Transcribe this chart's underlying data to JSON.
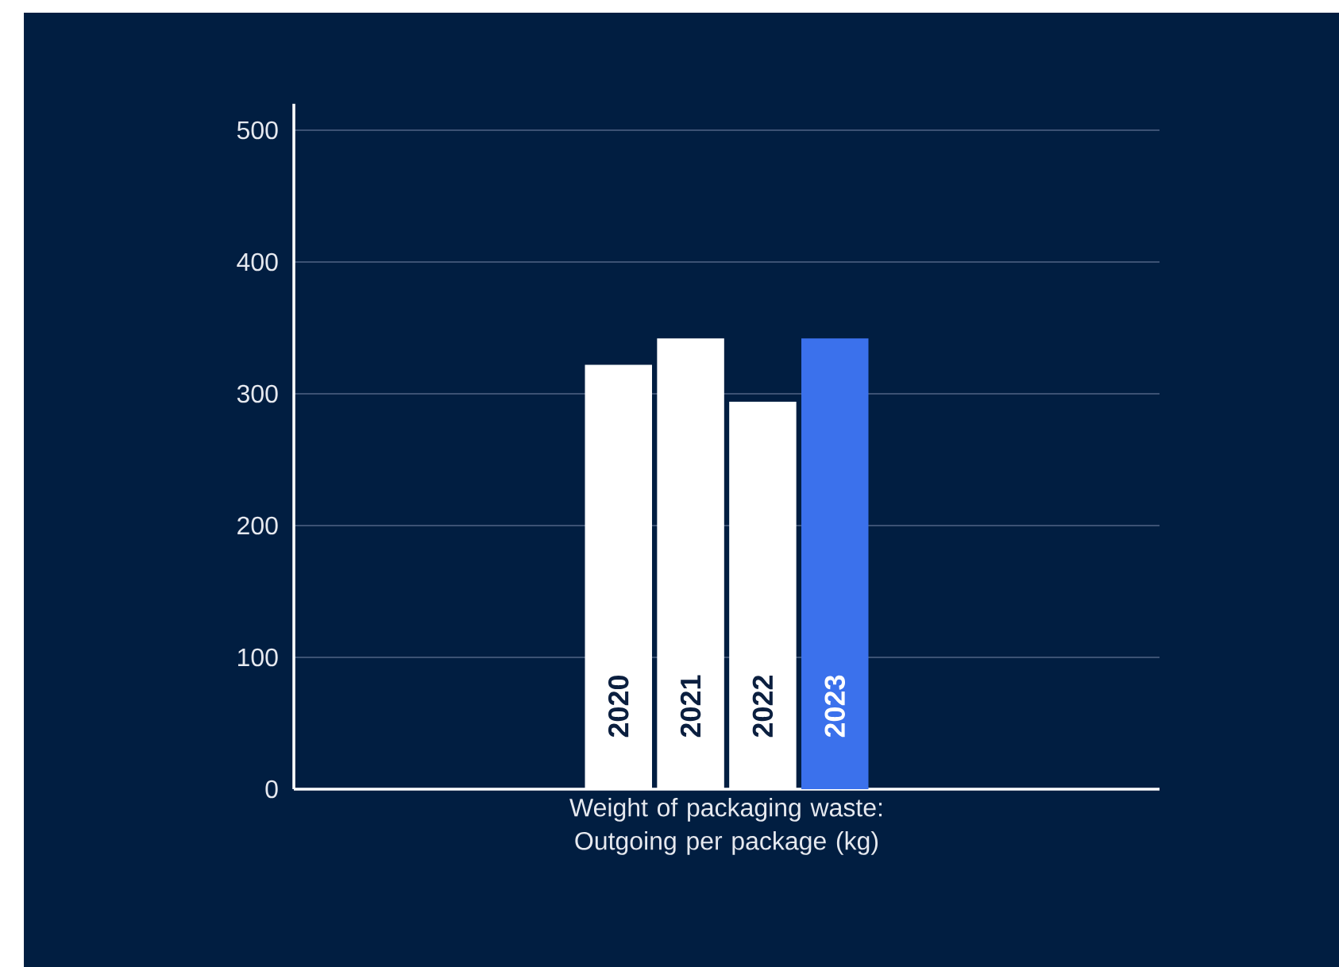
{
  "chart_data": {
    "type": "bar",
    "categories": [
      "Weight of packaging waste: Outgoing per package (kg)"
    ],
    "series": [
      {
        "name": "2020",
        "color": "#ffffff",
        "values": [
          322
        ]
      },
      {
        "name": "2021",
        "color": "#ffffff",
        "values": [
          342
        ]
      },
      {
        "name": "2022",
        "color": "#ffffff",
        "values": [
          294
        ]
      },
      {
        "name": "2023",
        "color": "#3b71ec",
        "values": [
          342
        ]
      }
    ],
    "ylim": [
      0,
      520
    ],
    "yticks": [
      0,
      100,
      200,
      300,
      400,
      500
    ],
    "grid": "y"
  }
}
